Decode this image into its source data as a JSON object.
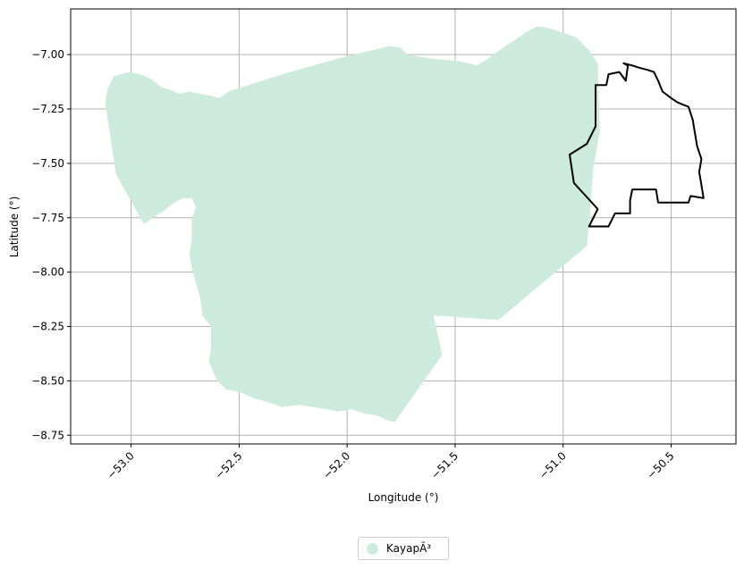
{
  "chart_data": {
    "type": "map",
    "xlabel": "Longitude (°)",
    "ylabel": "Latitude (°)",
    "xlim": [
      -53.28,
      -50.2
    ],
    "ylim": [
      -8.79,
      -6.79
    ],
    "x_ticks": [
      {
        "value": -53.0,
        "label": "−53.0"
      },
      {
        "value": -52.5,
        "label": "−52.5"
      },
      {
        "value": -52.0,
        "label": "−52.0"
      },
      {
        "value": -51.5,
        "label": "−51.5"
      },
      {
        "value": -51.0,
        "label": "−51.0"
      },
      {
        "value": -50.5,
        "label": "−50.5"
      }
    ],
    "y_ticks": [
      {
        "value": -7.0,
        "label": "−7.00"
      },
      {
        "value": -7.25,
        "label": "−7.25"
      },
      {
        "value": -7.5,
        "label": "−7.50"
      },
      {
        "value": -7.75,
        "label": "−7.75"
      },
      {
        "value": -8.0,
        "label": "−8.00"
      },
      {
        "value": -8.25,
        "label": "−8.25"
      },
      {
        "value": -8.5,
        "label": "−8.50"
      },
      {
        "value": -8.75,
        "label": "−8.75"
      }
    ],
    "grid": true,
    "legend_position": "bottom-center",
    "filled_region": {
      "name": "KayapÃ³",
      "color": "#cdebdc",
      "coords": [
        [
          -53.12,
          -7.22
        ],
        [
          -53.11,
          -7.16
        ],
        [
          -53.08,
          -7.1
        ],
        [
          -53.05,
          -7.09
        ],
        [
          -53.01,
          -7.08
        ],
        [
          -52.96,
          -7.09
        ],
        [
          -52.91,
          -7.11
        ],
        [
          -52.86,
          -7.15
        ],
        [
          -52.82,
          -7.16
        ],
        [
          -52.78,
          -7.18
        ],
        [
          -52.73,
          -7.17
        ],
        [
          -52.68,
          -7.18
        ],
        [
          -52.63,
          -7.19
        ],
        [
          -52.59,
          -7.2
        ],
        [
          -52.55,
          -7.17
        ],
        [
          -52.3,
          -7.09
        ],
        [
          -52.05,
          -7.02
        ],
        [
          -51.8,
          -6.96
        ],
        [
          -51.75,
          -6.97
        ],
        [
          -51.72,
          -7.0
        ],
        [
          -51.6,
          -7.02
        ],
        [
          -51.48,
          -7.03
        ],
        [
          -51.4,
          -7.05
        ],
        [
          -51.35,
          -7.02
        ],
        [
          -51.28,
          -6.97
        ],
        [
          -51.22,
          -6.93
        ],
        [
          -51.16,
          -6.89
        ],
        [
          -51.12,
          -6.87
        ],
        [
          -51.06,
          -6.88
        ],
        [
          -51.0,
          -6.9
        ],
        [
          -50.94,
          -6.92
        ],
        [
          -50.88,
          -6.98
        ],
        [
          -50.84,
          -7.04
        ],
        [
          -50.83,
          -7.35
        ],
        [
          -50.86,
          -7.52
        ],
        [
          -50.88,
          -7.78
        ],
        [
          -50.89,
          -7.88
        ],
        [
          -51.3,
          -8.22
        ],
        [
          -51.6,
          -8.2
        ],
        [
          -51.56,
          -8.38
        ],
        [
          -51.78,
          -8.69
        ],
        [
          -51.82,
          -8.68
        ],
        [
          -51.86,
          -8.66
        ],
        [
          -51.92,
          -8.65
        ],
        [
          -51.98,
          -8.63
        ],
        [
          -52.04,
          -8.64
        ],
        [
          -52.1,
          -8.63
        ],
        [
          -52.16,
          -8.62
        ],
        [
          -52.22,
          -8.61
        ],
        [
          -52.3,
          -8.62
        ],
        [
          -52.36,
          -8.6
        ],
        [
          -52.43,
          -8.58
        ],
        [
          -52.5,
          -8.55
        ],
        [
          -52.56,
          -8.54
        ],
        [
          -52.6,
          -8.5
        ],
        [
          -52.62,
          -8.46
        ],
        [
          -52.64,
          -8.41
        ],
        [
          -52.63,
          -8.35
        ],
        [
          -52.63,
          -8.25
        ],
        [
          -52.67,
          -8.2
        ],
        [
          -52.68,
          -8.12
        ],
        [
          -52.7,
          -8.05
        ],
        [
          -52.72,
          -7.98
        ],
        [
          -52.73,
          -7.92
        ],
        [
          -52.72,
          -7.85
        ],
        [
          -52.72,
          -7.76
        ],
        [
          -52.7,
          -7.7
        ],
        [
          -52.72,
          -7.66
        ],
        [
          -52.76,
          -7.66
        ],
        [
          -52.8,
          -7.68
        ],
        [
          -52.85,
          -7.72
        ],
        [
          -52.9,
          -7.75
        ],
        [
          -52.94,
          -7.78
        ],
        [
          -53.07,
          -7.55
        ]
      ]
    },
    "outline_region": {
      "color": "#000000",
      "coords": [
        [
          -50.72,
          -7.04
        ],
        [
          -50.68,
          -7.05
        ],
        [
          -50.65,
          -7.06
        ],
        [
          -50.61,
          -7.07
        ],
        [
          -50.58,
          -7.08
        ],
        [
          -50.56,
          -7.12
        ],
        [
          -50.54,
          -7.17
        ],
        [
          -50.5,
          -7.2
        ],
        [
          -50.47,
          -7.22
        ],
        [
          -50.42,
          -7.24
        ],
        [
          -50.4,
          -7.3
        ],
        [
          -50.39,
          -7.36
        ],
        [
          -50.38,
          -7.42
        ],
        [
          -50.36,
          -7.48
        ],
        [
          -50.37,
          -7.54
        ],
        [
          -50.36,
          -7.6
        ],
        [
          -50.35,
          -7.66
        ],
        [
          -50.41,
          -7.65
        ],
        [
          -50.42,
          -7.68
        ],
        [
          -50.56,
          -7.68
        ],
        [
          -50.57,
          -7.62
        ],
        [
          -50.68,
          -7.62
        ],
        [
          -50.69,
          -7.67
        ],
        [
          -50.69,
          -7.73
        ],
        [
          -50.76,
          -7.73
        ],
        [
          -50.79,
          -7.79
        ],
        [
          -50.88,
          -7.79
        ],
        [
          -50.84,
          -7.71
        ],
        [
          -50.95,
          -7.59
        ],
        [
          -50.97,
          -7.46
        ],
        [
          -50.89,
          -7.41
        ],
        [
          -50.85,
          -7.33
        ],
        [
          -50.85,
          -7.14
        ],
        [
          -50.8,
          -7.14
        ],
        [
          -50.79,
          -7.09
        ],
        [
          -50.74,
          -7.08
        ],
        [
          -50.71,
          -7.12
        ],
        [
          -50.7,
          -7.05
        ]
      ]
    },
    "legend": [
      {
        "label": "KayapÃ³",
        "color": "#cdebdc"
      }
    ]
  }
}
